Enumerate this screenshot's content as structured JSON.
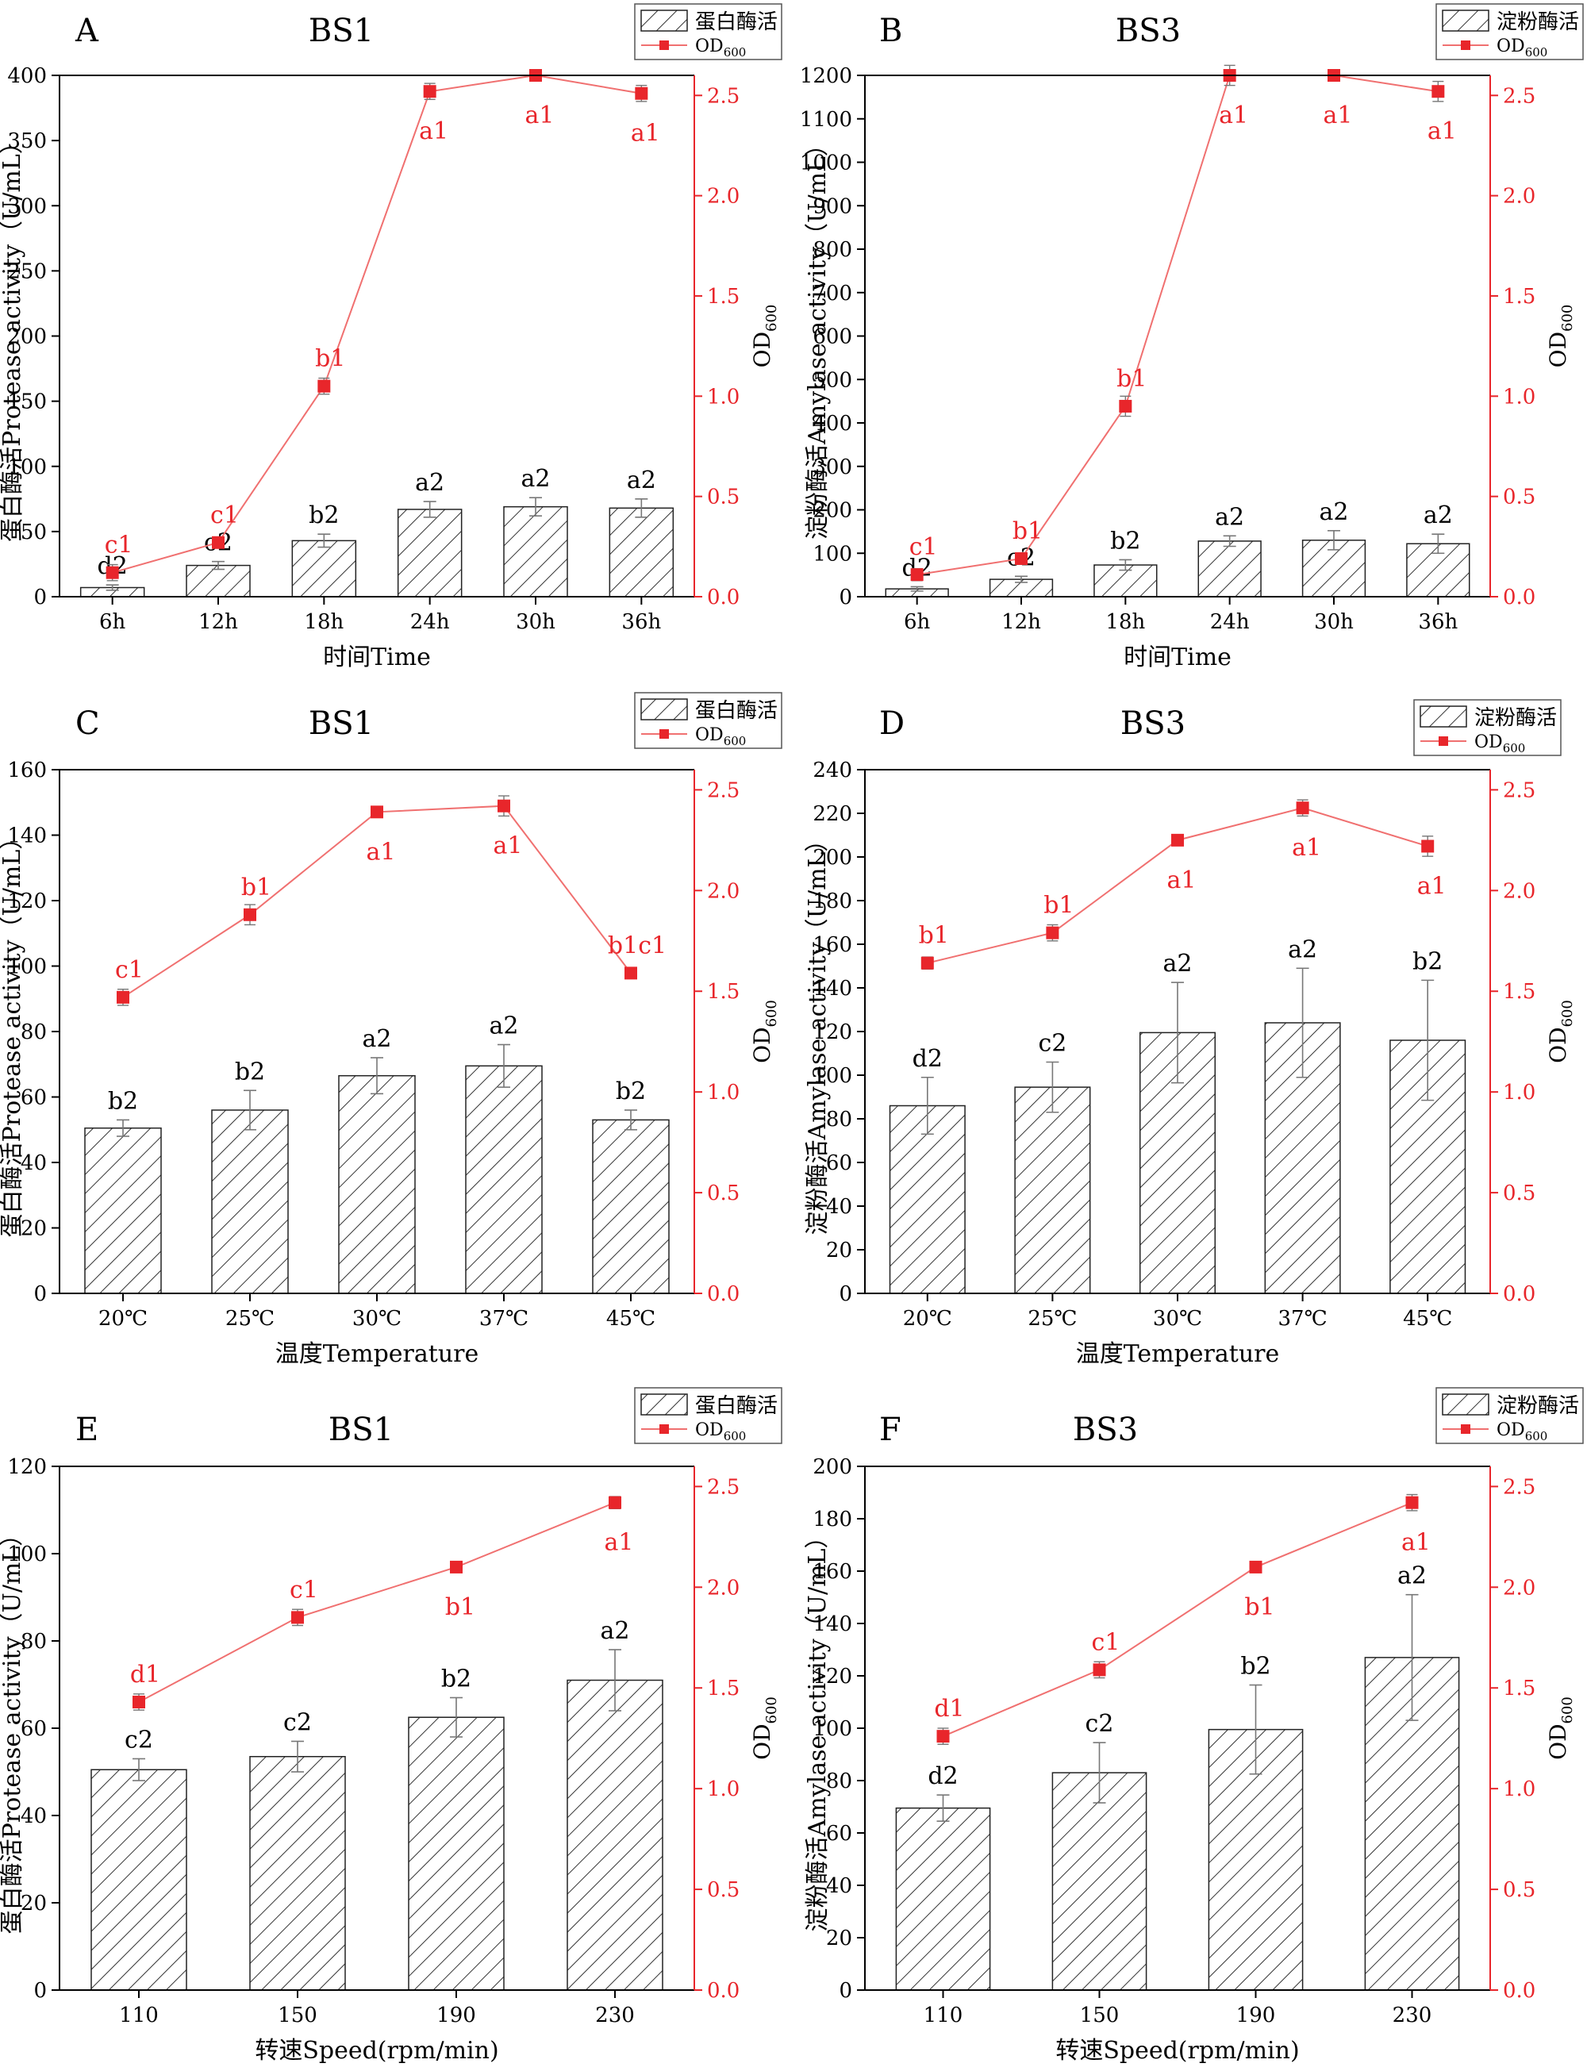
{
  "chart_data": [
    {
      "panel": "A",
      "title": "BS1",
      "type": "bar+line",
      "xlabel": "时间Time",
      "ylabel": "蛋白酶活Protease activity（U/mL）",
      "y2label": "OD",
      "y2label_sub": "600",
      "ylim": [
        0,
        400
      ],
      "yticks": [
        0,
        50,
        100,
        150,
        200,
        250,
        300,
        350,
        400
      ],
      "y2lim": [
        0,
        2.6
      ],
      "y2ticks": [
        0.0,
        0.5,
        1.0,
        1.5,
        2.0,
        2.5
      ],
      "y2tick_labels": [
        "0.0",
        "0.5",
        "1.0",
        "1.5",
        "2.0",
        "2.5"
      ],
      "categories": [
        "6h",
        "12h",
        "18h",
        "24h",
        "30h",
        "36h"
      ],
      "bars": {
        "name": "蛋白酶活",
        "values": [
          7,
          24,
          43,
          67,
          69,
          68
        ],
        "errors": [
          2,
          3,
          5,
          6,
          7,
          7
        ],
        "labels": [
          "d2",
          "c2",
          "b2",
          "a2",
          "a2",
          "a2"
        ]
      },
      "line": {
        "name": "OD600",
        "values": [
          0.12,
          0.27,
          1.05,
          2.52,
          2.6,
          2.51
        ],
        "errors": [
          0.04,
          0.02,
          0.04,
          0.04,
          0.02,
          0.04
        ],
        "labels": [
          "c1",
          "c1",
          "b1",
          "a1",
          "a1",
          "a1"
        ]
      },
      "legend": {
        "bar": "蛋白酶活",
        "line": "OD",
        "line_sub": "600",
        "position": "top-right"
      }
    },
    {
      "panel": "B",
      "title": "BS3",
      "type": "bar+line",
      "xlabel": "时间Time",
      "ylabel": "淀粉酶活Amylase activity（U/mL）",
      "y2label": "OD",
      "y2label_sub": "600",
      "ylim": [
        0,
        1200
      ],
      "yticks": [
        0,
        100,
        200,
        300,
        400,
        500,
        600,
        700,
        800,
        900,
        1000,
        1100,
        1200
      ],
      "y2lim": [
        0,
        2.6
      ],
      "y2ticks": [
        0.0,
        0.5,
        1.0,
        1.5,
        2.0,
        2.5
      ],
      "y2tick_labels": [
        "0.0",
        "0.5",
        "1.0",
        "1.5",
        "2.0",
        "2.5"
      ],
      "categories": [
        "6h",
        "12h",
        "18h",
        "24h",
        "30h",
        "36h"
      ],
      "bars": {
        "name": "淀粉酶活",
        "values": [
          18,
          40,
          73,
          128,
          130,
          122
        ],
        "errors": [
          5,
          7,
          12,
          12,
          22,
          22
        ],
        "labels": [
          "d2",
          "c2",
          "b2",
          "a2",
          "a2",
          "a2"
        ]
      },
      "line": {
        "name": "OD600",
        "values": [
          0.11,
          0.19,
          0.95,
          2.6,
          2.6,
          2.52
        ],
        "errors": [
          0.03,
          0.02,
          0.05,
          0.05,
          0.02,
          0.05
        ],
        "labels": [
          "c1",
          "b1",
          "b1",
          "a1",
          "a1",
          "a1"
        ]
      },
      "legend": {
        "bar": "淀粉酶活",
        "line": "OD",
        "line_sub": "600",
        "position": "top-right"
      }
    },
    {
      "panel": "C",
      "title": "BS1",
      "type": "bar+line",
      "xlabel": "温度Temperature",
      "ylabel": "蛋白酶活Protease activity（U/mL）",
      "y2label": "OD",
      "y2label_sub": "600",
      "ylim": [
        0,
        160
      ],
      "yticks": [
        0,
        20,
        40,
        60,
        80,
        100,
        120,
        140,
        160
      ],
      "y2lim": [
        0,
        2.6
      ],
      "y2ticks": [
        0.0,
        0.5,
        1.0,
        1.5,
        2.0,
        2.5
      ],
      "y2tick_labels": [
        "0.0",
        "0.5",
        "1.0",
        "1.5",
        "2.0",
        "2.5"
      ],
      "categories": [
        "20℃",
        "25℃",
        "30℃",
        "37℃",
        "45℃"
      ],
      "bars": {
        "name": "蛋白酶活",
        "values": [
          50.5,
          56,
          66.5,
          69.5,
          53
        ],
        "errors": [
          2.5,
          6,
          5.5,
          6.5,
          3
        ],
        "labels": [
          "b2",
          "b2",
          "a2",
          "a2",
          "b2"
        ]
      },
      "line": {
        "name": "OD600",
        "values": [
          1.47,
          1.88,
          2.39,
          2.42,
          1.59
        ],
        "errors": [
          0.04,
          0.05,
          0.02,
          0.05,
          0.01
        ],
        "labels": [
          "c1",
          "b1",
          "a1",
          "a1",
          "b1c1"
        ]
      },
      "legend": {
        "bar": "蛋白酶活",
        "line": "OD",
        "line_sub": "600",
        "position": "top-right"
      }
    },
    {
      "panel": "D",
      "title": "BS3",
      "type": "bar+line",
      "xlabel": "温度Temperature",
      "ylabel": "淀粉酶活Amylase activity（U/mL）",
      "y2label": "OD",
      "y2label_sub": "600",
      "ylim": [
        0,
        240
      ],
      "yticks": [
        0,
        20,
        40,
        60,
        80,
        100,
        120,
        140,
        160,
        180,
        200,
        220,
        240
      ],
      "y2lim": [
        0,
        2.6
      ],
      "y2ticks": [
        0.0,
        0.5,
        1.0,
        1.5,
        2.0,
        2.5
      ],
      "y2tick_labels": [
        "0.0",
        "0.5",
        "1.0",
        "1.5",
        "2.0",
        "2.5"
      ],
      "categories": [
        "20℃",
        "25℃",
        "30℃",
        "37℃",
        "45℃"
      ],
      "bars": {
        "name": "淀粉酶活",
        "values": [
          86,
          94.5,
          119.5,
          124,
          116
        ],
        "errors": [
          13,
          11.5,
          23,
          25,
          27.5
        ],
        "labels": [
          "d2",
          "c2",
          "a2",
          "a2",
          "b2"
        ]
      },
      "line": {
        "name": "OD600",
        "values": [
          1.64,
          1.79,
          2.25,
          2.41,
          2.22
        ],
        "errors": [
          0.03,
          0.04,
          0.01,
          0.04,
          0.05
        ],
        "labels": [
          "b1",
          "b1",
          "a1",
          "a1",
          "a1"
        ]
      },
      "legend": {
        "bar": "淀粉酶活",
        "line": "OD",
        "line_sub": "600",
        "position": "top-right"
      }
    },
    {
      "panel": "E",
      "title": "BS1",
      "type": "bar+line",
      "xlabel": "转速Speed(rpm/min)",
      "ylabel": "蛋白酶活Protease activity（U/mL）",
      "y2label": "OD",
      "y2label_sub": "600",
      "ylim": [
        0,
        120
      ],
      "yticks": [
        0,
        20,
        40,
        60,
        80,
        100,
        120
      ],
      "y2lim": [
        0,
        2.6
      ],
      "y2ticks": [
        0.0,
        0.5,
        1.0,
        1.5,
        2.0,
        2.5
      ],
      "y2tick_labels": [
        "0.0",
        "0.5",
        "1.0",
        "1.5",
        "2.0",
        "2.5"
      ],
      "categories": [
        "110",
        "150",
        "190",
        "230"
      ],
      "bars": {
        "name": "蛋白酶活",
        "values": [
          50.5,
          53.5,
          62.5,
          71
        ],
        "errors": [
          2.5,
          3.5,
          4.5,
          7
        ],
        "labels": [
          "c2",
          "c2",
          "b2",
          "a2"
        ]
      },
      "line": {
        "name": "OD600",
        "values": [
          1.43,
          1.85,
          2.1,
          2.42
        ],
        "errors": [
          0.04,
          0.04,
          0.01,
          0.03
        ],
        "labels": [
          "d1",
          "c1",
          "b1",
          "a1"
        ]
      },
      "legend": {
        "bar": "蛋白酶活",
        "line": "OD",
        "line_sub": "600",
        "position": "top-right"
      }
    },
    {
      "panel": "F",
      "title": "BS3",
      "type": "bar+line",
      "xlabel": "转速Speed(rpm/min)",
      "ylabel": "淀粉酶活Amylase activity（U/mL）",
      "y2label": "OD",
      "y2label_sub": "600",
      "ylim": [
        0,
        200
      ],
      "yticks": [
        0,
        20,
        40,
        60,
        80,
        100,
        120,
        140,
        160,
        180,
        200
      ],
      "y2lim": [
        0,
        2.6
      ],
      "y2ticks": [
        0.0,
        0.5,
        1.0,
        1.5,
        2.0,
        2.5
      ],
      "y2tick_labels": [
        "0.0",
        "0.5",
        "1.0",
        "1.5",
        "2.0",
        "2.5"
      ],
      "categories": [
        "110",
        "150",
        "190",
        "230"
      ],
      "bars": {
        "name": "淀粉酶活",
        "values": [
          69.5,
          83,
          99.5,
          127
        ],
        "errors": [
          5,
          11.5,
          17,
          24
        ],
        "labels": [
          "d2",
          "c2",
          "b2",
          "a2"
        ]
      },
      "line": {
        "name": "OD600",
        "values": [
          1.26,
          1.59,
          2.1,
          2.42
        ],
        "errors": [
          0.04,
          0.04,
          0.02,
          0.04
        ],
        "labels": [
          "d1",
          "c1",
          "b1",
          "a1"
        ]
      },
      "legend": {
        "bar": "淀粉酶活",
        "line": "OD",
        "line_sub": "600",
        "position": "top-right"
      }
    }
  ],
  "colors": {
    "axis": "#000000",
    "red": "#e8262b",
    "line": "#f07070",
    "hatch": "#333333",
    "error": "#777777"
  }
}
